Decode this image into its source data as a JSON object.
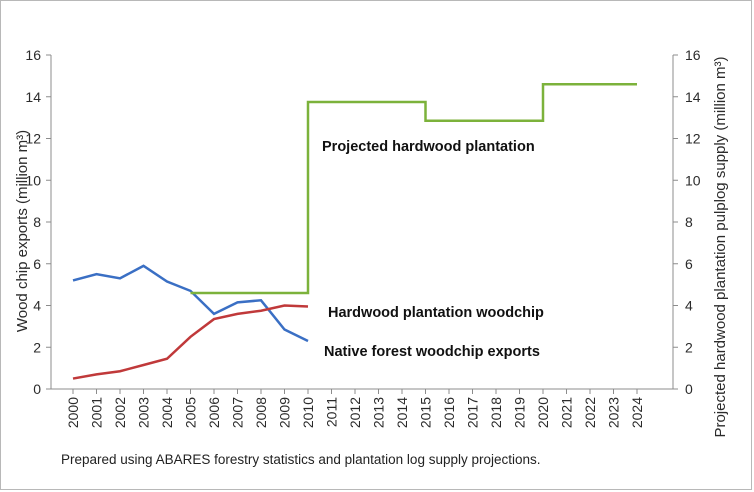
{
  "chart_data": {
    "type": "line",
    "categories": [
      "2000",
      "2001",
      "2002",
      "2003",
      "2004",
      "2005",
      "2006",
      "2007",
      "2008",
      "2009",
      "2010",
      "2011",
      "2012",
      "2013",
      "2014",
      "2015",
      "2016",
      "2017",
      "2018",
      "2019",
      "2020",
      "2021",
      "2022",
      "2023",
      "2024"
    ],
    "ylabel": "Wood chip exports (million m³)",
    "y2label": "Projected hardwood plantation pulplog supply (million m³)",
    "ylim": [
      0,
      16
    ],
    "y2lim": [
      0,
      16
    ],
    "yticks": [
      0,
      2,
      4,
      6,
      8,
      10,
      12,
      14,
      16
    ],
    "grid": false,
    "series": [
      {
        "name": "Native forest woodchip exports",
        "axis": "left",
        "color": "#3a6fc4",
        "values": [
          5.2,
          5.5,
          5.3,
          5.9,
          5.15,
          4.7,
          3.6,
          4.15,
          4.25,
          2.85,
          2.3,
          null,
          null,
          null,
          null,
          null,
          null,
          null,
          null,
          null,
          null,
          null,
          null,
          null,
          null
        ]
      },
      {
        "name": "Hardwood plantation woodchip",
        "axis": "left",
        "color": "#c0393a",
        "values": [
          0.5,
          0.7,
          0.85,
          1.15,
          1.45,
          2.5,
          3.35,
          3.6,
          3.75,
          4.0,
          3.95,
          null,
          null,
          null,
          null,
          null,
          null,
          null,
          null,
          null,
          null,
          null,
          null,
          null,
          null
        ]
      },
      {
        "name": "Projected hardwood plantation",
        "axis": "right",
        "color": "#7cb23b",
        "step": true,
        "values": [
          null,
          null,
          null,
          null,
          null,
          4.6,
          4.6,
          4.6,
          4.6,
          4.6,
          13.75,
          13.75,
          13.75,
          13.75,
          13.75,
          12.85,
          12.85,
          12.85,
          12.85,
          12.85,
          14.6,
          14.6,
          14.6,
          14.6,
          14.6
        ]
      }
    ],
    "annotations": [
      {
        "text": "Projected hardwood  plantation",
        "series": 2
      },
      {
        "text": "Hardwood plantation  woodchip",
        "series": 1
      },
      {
        "text": "Native forest woodchip exports",
        "series": 0
      }
    ],
    "caption": "Prepared using ABARES forestry statistics and plantation log supply  projections."
  }
}
